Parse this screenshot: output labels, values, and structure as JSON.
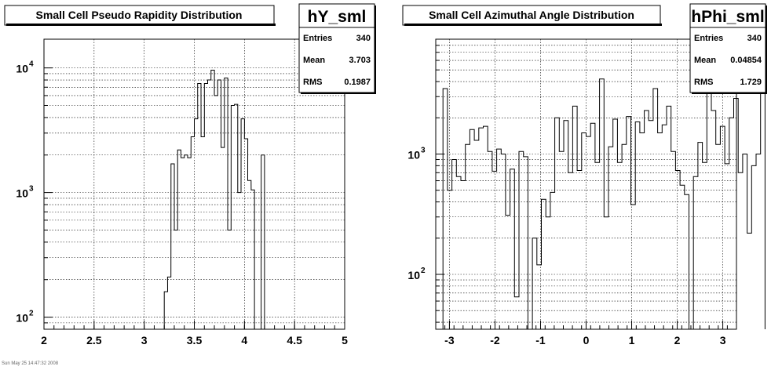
{
  "footer_text": "Sun May 25 14:47:32 2008",
  "chart_data": [
    {
      "type": "histogram",
      "title": "Small Cell Pseudo Rapidity Distribution",
      "stats": {
        "name": "hY_sml",
        "entries": "340",
        "mean": "3.703",
        "rms": "0.1987",
        "entries_label": "Entries",
        "mean_label": "Mean",
        "rms_label": "RMS"
      },
      "xlim": [
        2,
        5
      ],
      "ylim": [
        80,
        17000
      ],
      "yscale": "log",
      "grid": true,
      "x_ticks": [
        2,
        2.5,
        3,
        3.5,
        4,
        4.5,
        5
      ],
      "x_tick_labels": [
        "2",
        "2.5",
        "3",
        "3.5",
        "4",
        "4.5",
        "5"
      ],
      "y_ticks": [
        100,
        1000,
        10000
      ],
      "y_tick_bases": [
        "10",
        "10",
        "10"
      ],
      "y_tick_exps": [
        "2",
        "3",
        "4"
      ],
      "bins": {
        "lo": [
          3.2,
          3.233,
          3.267,
          3.3,
          3.333,
          3.367,
          3.4,
          3.433,
          3.467,
          3.5,
          3.533,
          3.567,
          3.6,
          3.633,
          3.667,
          3.7,
          3.733,
          3.767,
          3.8,
          3.833,
          3.867,
          3.9,
          3.933,
          3.967,
          4.0,
          4.033,
          4.067,
          4.1,
          4.133,
          4.167,
          4.2
        ],
        "values": [
          160,
          210,
          1700,
          500,
          2200,
          1900,
          2000,
          1900,
          2800,
          3900,
          7500,
          2800,
          7500,
          8000,
          9600,
          6000,
          8000,
          2300,
          8300,
          500,
          5000,
          5100,
          1000,
          3900,
          2700,
          1250,
          1050,
          80,
          80,
          2000,
          80
        ],
        "width": 0.0333
      }
    },
    {
      "type": "histogram",
      "title": "Small Cell Azimuthal Angle Distribution",
      "stats": {
        "name": "hPhi_sml",
        "entries": "340",
        "mean": "0.04854",
        "rms": "1.729",
        "entries_label": "Entries",
        "mean_label": "Mean",
        "rms_label": "RMS"
      },
      "xlim": [
        -3.3,
        3.3
      ],
      "ylim": [
        35,
        9000
      ],
      "yscale": "log",
      "grid": true,
      "x_ticks": [
        -3,
        -2,
        -1,
        0,
        1,
        2,
        3
      ],
      "x_tick_labels": [
        "-3",
        "-2",
        "-1",
        "0",
        "1",
        "2",
        "3"
      ],
      "y_ticks": [
        100,
        1000
      ],
      "y_tick_bases": [
        "10",
        "10"
      ],
      "y_tick_exps": [
        "2",
        "3"
      ],
      "bins": {
        "lo_start": -3.14159,
        "width": 0.09817,
        "values": [
          3500,
          500,
          900,
          650,
          600,
          1200,
          1600,
          1300,
          1650,
          1700,
          1050,
          720,
          1100,
          1000,
          310,
          750,
          65,
          1050,
          950,
          30,
          200,
          120,
          420,
          300,
          480,
          2000,
          1050,
          1900,
          700,
          2500,
          730,
          1500,
          1400,
          1800,
          850,
          4200,
          300,
          1150,
          1950,
          850,
          1200,
          2050,
          380,
          1850,
          1500,
          2300,
          1900,
          3500,
          1500,
          1750,
          2500,
          1050,
          730,
          550,
          460,
          30,
          650,
          1250,
          850,
          3500,
          2300,
          1200,
          1700,
          830,
          2000,
          2900,
          700,
          1000,
          220,
          800,
          1000,
          3700
        ]
      }
    }
  ]
}
